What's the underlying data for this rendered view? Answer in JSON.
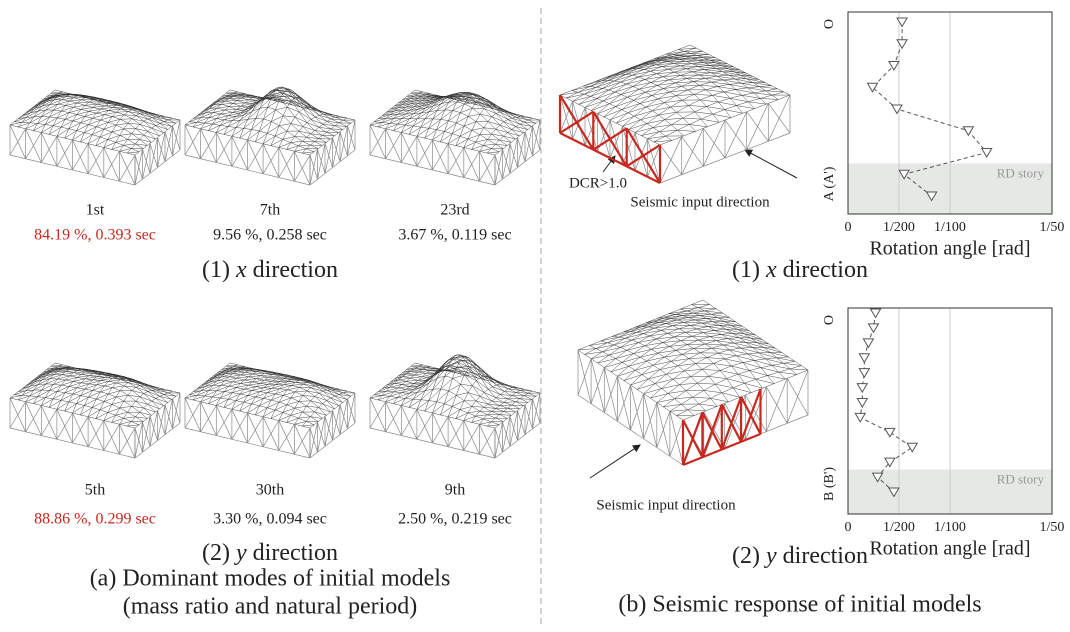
{
  "modes": {
    "rows": [
      {
        "caption": {
          "number": "(1)",
          "axis": "x",
          "word": "direction"
        },
        "items": [
          {
            "order": "1st",
            "stats": "84.19 %, 0.393 sec",
            "dominant": true
          },
          {
            "order": "7th",
            "stats": "9.56 %, 0.258 sec",
            "dominant": false
          },
          {
            "order": "23rd",
            "stats": "3.67 %, 0.119 sec",
            "dominant": false
          }
        ]
      },
      {
        "caption": {
          "number": "(2)",
          "axis": "y",
          "word": "direction"
        },
        "items": [
          {
            "order": "5th",
            "stats": "88.86 %, 0.299 sec",
            "dominant": true
          },
          {
            "order": "30th",
            "stats": "3.30 %, 0.094 sec",
            "dominant": false
          },
          {
            "order": "9th",
            "stats": "2.50 %, 0.219 sec",
            "dominant": false
          }
        ]
      }
    ],
    "caption_lines": [
      "(a) Dominant modes of initial models",
      "(mass ratio and natural period)"
    ]
  },
  "response": {
    "panels": [
      {
        "caption": {
          "number": "(1)",
          "axis": "x",
          "word": "direction"
        },
        "input_label": "Seismic input direction",
        "annotation": "DCR>1.0"
      },
      {
        "caption": {
          "number": "(2)",
          "axis": "y",
          "word": "direction"
        },
        "input_label": "Seismic input direction"
      }
    ],
    "caption": "(b) Seismic response of initial models"
  },
  "chart_data": [
    {
      "type": "line",
      "xlabel": "Rotation angle [rad]",
      "y_top_label": "O",
      "y_bottom_label": "A (A')",
      "band_label": "RD story",
      "band_points": 2,
      "marker": "triangle-down",
      "dashed": true,
      "color": "#555555",
      "xlim": [
        0,
        0.02
      ],
      "xticks": [
        0,
        {
          "value": 0.005,
          "label": "1/200"
        },
        {
          "value": 0.01,
          "label": "1/100"
        },
        {
          "value": 0.02,
          "label": "1/50"
        }
      ],
      "grid": true,
      "values": [
        0.0053,
        0.0053,
        0.0045,
        0.0024,
        0.0048,
        0.0118,
        0.0136,
        0.0055,
        0.0082
      ]
    },
    {
      "type": "line",
      "xlabel": "Rotation angle [rad]",
      "y_top_label": "O",
      "y_bottom_label": "B (B')",
      "band_label": "RD story",
      "band_points": 2,
      "marker": "triangle-down",
      "dashed": true,
      "color": "#555555",
      "xlim": [
        0,
        0.02
      ],
      "xticks": [
        0,
        {
          "value": 0.005,
          "label": "1/200"
        },
        {
          "value": 0.01,
          "label": "1/100"
        },
        {
          "value": 0.02,
          "label": "1/50"
        }
      ],
      "grid": true,
      "values": [
        0.0027,
        0.0025,
        0.002,
        0.0016,
        0.0016,
        0.0014,
        0.0014,
        0.0012,
        0.0041,
        0.0063,
        0.0041,
        0.0029,
        0.0045
      ]
    }
  ]
}
